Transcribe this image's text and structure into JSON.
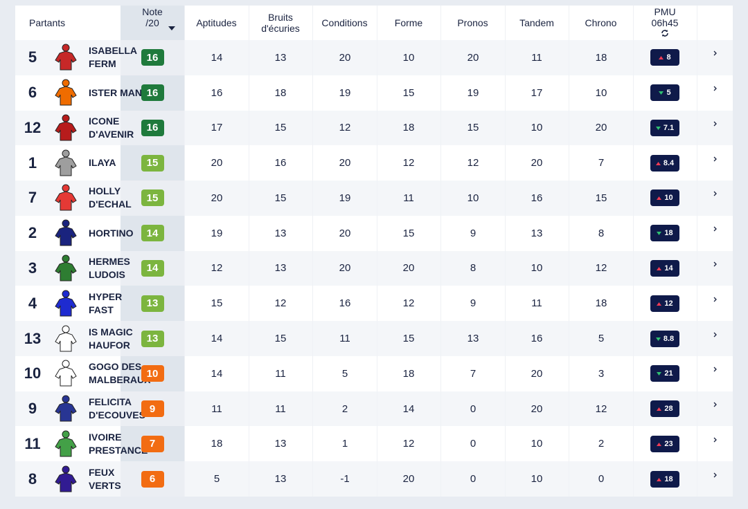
{
  "table": {
    "columns": [
      "Partants",
      "Note /20",
      "Aptitudes",
      "Bruits d'écuries",
      "Conditions",
      "Forme",
      "Pronos",
      "Tandem",
      "Chrono",
      "PMU 06h45"
    ],
    "rows": [
      {
        "number": "5",
        "name": "ISABELLA FERM",
        "note": "16",
        "note_color": "#1f7a3c",
        "silk": "#c62828",
        "scores": [
          "14",
          "13",
          "20",
          "10",
          "20",
          "11",
          "18"
        ],
        "pmu": "8",
        "trend": "up"
      },
      {
        "number": "6",
        "name": "ISTER MAN",
        "note": "16",
        "note_color": "#1f7a3c",
        "silk": "#ef6c00",
        "scores": [
          "16",
          "18",
          "19",
          "15",
          "19",
          "17",
          "10"
        ],
        "pmu": "5",
        "trend": "down"
      },
      {
        "number": "12",
        "name": "ICONE D'AVENIR",
        "note": "16",
        "note_color": "#1f7a3c",
        "silk": "#b71c1c",
        "scores": [
          "17",
          "15",
          "12",
          "18",
          "15",
          "10",
          "20"
        ],
        "pmu": "7.1",
        "trend": "down"
      },
      {
        "number": "1",
        "name": "ILAYA",
        "note": "15",
        "note_color": "#7cb53f",
        "silk": "#9e9e9e",
        "scores": [
          "20",
          "16",
          "20",
          "12",
          "12",
          "20",
          "7"
        ],
        "pmu": "8.4",
        "trend": "up"
      },
      {
        "number": "7",
        "name": "HOLLY D'ECHAL",
        "note": "15",
        "note_color": "#7cb53f",
        "silk": "#e53935",
        "scores": [
          "20",
          "15",
          "19",
          "11",
          "10",
          "16",
          "15"
        ],
        "pmu": "10",
        "trend": "up"
      },
      {
        "number": "2",
        "name": "HORTINO",
        "note": "14",
        "note_color": "#7cb53f",
        "silk": "#1a237e",
        "scores": [
          "19",
          "13",
          "20",
          "15",
          "9",
          "13",
          "8"
        ],
        "pmu": "18",
        "trend": "down"
      },
      {
        "number": "3",
        "name": "HERMES LUDOIS",
        "note": "14",
        "note_color": "#7cb53f",
        "silk": "#2e7d32",
        "scores": [
          "12",
          "13",
          "20",
          "20",
          "8",
          "10",
          "12"
        ],
        "pmu": "14",
        "trend": "up"
      },
      {
        "number": "4",
        "name": "HYPER FAST",
        "note": "13",
        "note_color": "#7cb53f",
        "silk": "#1e2bd0",
        "scores": [
          "15",
          "12",
          "16",
          "12",
          "9",
          "11",
          "18"
        ],
        "pmu": "12",
        "trend": "up"
      },
      {
        "number": "13",
        "name": "IS MAGIC HAUFOR",
        "note": "13",
        "note_color": "#7cb53f",
        "silk": "#ffffff",
        "scores": [
          "14",
          "15",
          "11",
          "15",
          "13",
          "16",
          "5"
        ],
        "pmu": "8.8",
        "trend": "down"
      },
      {
        "number": "10",
        "name": "GOGO DES MALBERAUX",
        "note": "10",
        "note_color": "#f26c12",
        "silk": "#ffffff",
        "scores": [
          "14",
          "11",
          "5",
          "18",
          "7",
          "20",
          "3"
        ],
        "pmu": "21",
        "trend": "down"
      },
      {
        "number": "9",
        "name": "FELICITA D'ECOUVES",
        "note": "9",
        "note_color": "#f26c12",
        "silk": "#283593",
        "scores": [
          "11",
          "11",
          "2",
          "14",
          "0",
          "20",
          "12"
        ],
        "pmu": "28",
        "trend": "up"
      },
      {
        "number": "11",
        "name": "IVOIRE PRESTANCE",
        "note": "7",
        "note_color": "#f26c12",
        "silk": "#43a047",
        "scores": [
          "18",
          "13",
          "1",
          "12",
          "0",
          "10",
          "2"
        ],
        "pmu": "23",
        "trend": "up"
      },
      {
        "number": "8",
        "name": "FEUX VERTS",
        "note": "6",
        "note_color": "#f26c12",
        "silk": "#311b92",
        "scores": [
          "5",
          "13",
          "-1",
          "20",
          "0",
          "10",
          "0"
        ],
        "pmu": "18",
        "trend": "up"
      }
    ]
  }
}
